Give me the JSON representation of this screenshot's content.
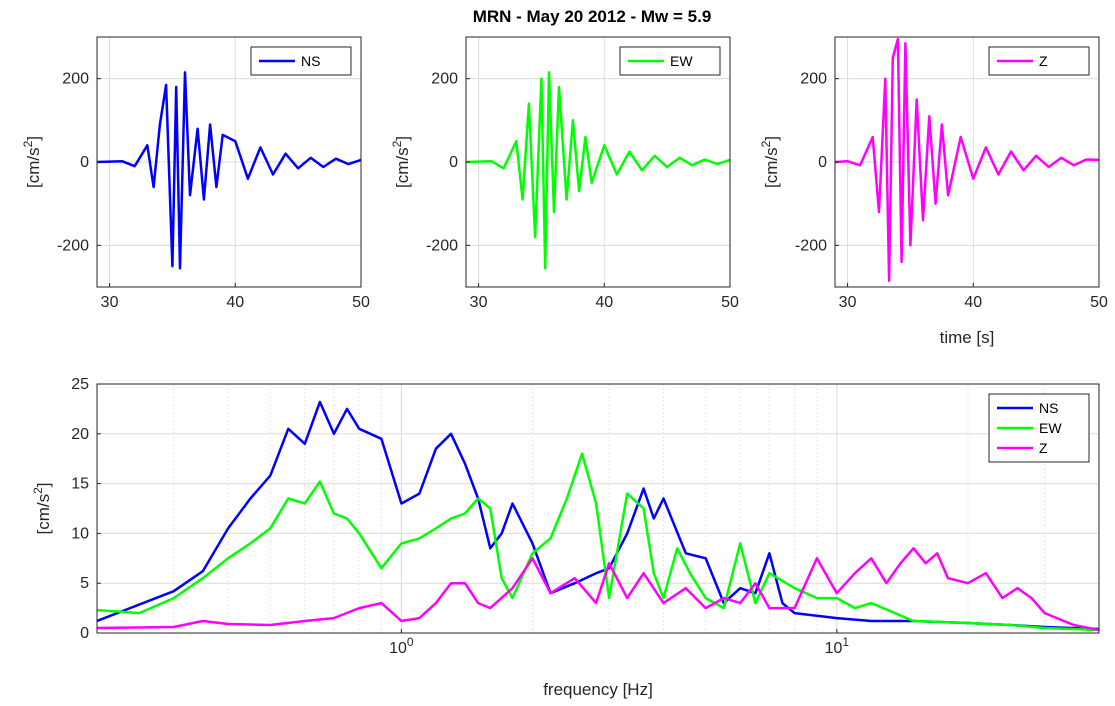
{
  "figure": {
    "title": "MRN - May 20 2012 - Mw = 5.9"
  },
  "colors": {
    "NS": "#0000ff",
    "EW": "#00ff00",
    "Z": "#ff00ff"
  },
  "chart_data": [
    {
      "type": "line",
      "title": "",
      "xlabel": "",
      "ylabel": "[cm/s2]",
      "xlim": [
        29,
        50
      ],
      "ylim": [
        -300,
        300
      ],
      "xticks": [
        30,
        40,
        50
      ],
      "yticks": [
        -200,
        0,
        200
      ],
      "grid": true,
      "legend": "top-right",
      "series": [
        {
          "name": "NS",
          "x": [
            29,
            31,
            32,
            33,
            33.5,
            34,
            34.5,
            35,
            35.3,
            35.6,
            36,
            36.4,
            37,
            37.5,
            38,
            38.5,
            39,
            40,
            41,
            42,
            43,
            44,
            45,
            46,
            47,
            48,
            49,
            50
          ],
          "y": [
            0,
            2,
            -10,
            40,
            -60,
            90,
            185,
            -250,
            180,
            -255,
            215,
            -80,
            80,
            -90,
            90,
            -60,
            65,
            50,
            -40,
            35,
            -30,
            20,
            -15,
            10,
            -12,
            8,
            -5,
            5
          ]
        }
      ]
    },
    {
      "type": "line",
      "title": "",
      "xlabel": "",
      "ylabel": "[cm/s2]",
      "xlim": [
        29,
        50
      ],
      "ylim": [
        -300,
        300
      ],
      "xticks": [
        30,
        40,
        50
      ],
      "yticks": [
        -200,
        0,
        200
      ],
      "grid": true,
      "legend": "top-right",
      "series": [
        {
          "name": "EW",
          "x": [
            29,
            31,
            32,
            33,
            33.5,
            34,
            34.5,
            35,
            35.3,
            35.6,
            36,
            36.4,
            37,
            37.5,
            38,
            38.5,
            39,
            40,
            41,
            42,
            43,
            44,
            45,
            46,
            47,
            48,
            49,
            50
          ],
          "y": [
            0,
            2,
            -15,
            50,
            -90,
            140,
            -180,
            200,
            -255,
            215,
            -120,
            180,
            -90,
            100,
            -70,
            60,
            -50,
            40,
            -30,
            25,
            -20,
            15,
            -12,
            10,
            -8,
            6,
            -5,
            5
          ]
        }
      ]
    },
    {
      "type": "line",
      "title": "",
      "xlabel": "time [s]",
      "ylabel": "[cm/s2]",
      "xlim": [
        29,
        50
      ],
      "ylim": [
        -300,
        300
      ],
      "xticks": [
        30,
        40,
        50
      ],
      "yticks": [
        -200,
        0,
        200
      ],
      "grid": true,
      "legend": "top-right",
      "series": [
        {
          "name": "Z",
          "x": [
            29,
            30,
            31,
            32,
            32.5,
            33,
            33.3,
            33.6,
            34,
            34.3,
            34.6,
            35,
            35.5,
            36,
            36.5,
            37,
            37.5,
            38,
            39,
            40,
            41,
            42,
            43,
            44,
            45,
            46,
            47,
            48,
            49,
            50
          ],
          "y": [
            0,
            2,
            -8,
            60,
            -120,
            200,
            -285,
            250,
            295,
            -240,
            285,
            -200,
            150,
            -140,
            110,
            -100,
            90,
            -80,
            60,
            -40,
            35,
            -30,
            25,
            -20,
            15,
            -12,
            10,
            -8,
            6,
            5
          ]
        }
      ]
    },
    {
      "type": "line",
      "title": "",
      "xlabel": "frequency [Hz]",
      "ylabel": "[cm/s2]",
      "xscale": "log",
      "xlim": [
        0.2,
        40
      ],
      "ylim": [
        0,
        25
      ],
      "xtick_labels": [
        "10^0",
        "10^1"
      ],
      "xticks": [
        1,
        10
      ],
      "yticks": [
        0,
        5,
        10,
        15,
        20,
        25
      ],
      "grid": true,
      "legend": "top-right",
      "series": [
        {
          "name": "NS",
          "x": [
            0.2,
            0.3,
            0.35,
            0.4,
            0.45,
            0.5,
            0.55,
            0.6,
            0.65,
            0.7,
            0.75,
            0.8,
            0.9,
            1.0,
            1.1,
            1.2,
            1.3,
            1.4,
            1.5,
            1.6,
            1.7,
            1.8,
            2.0,
            2.2,
            2.5,
            2.8,
            3.0,
            3.3,
            3.6,
            3.8,
            4.0,
            4.5,
            5.0,
            5.5,
            6.0,
            6.5,
            7.0,
            7.5,
            8.0,
            10,
            12,
            15,
            20,
            25,
            30,
            40
          ],
          "y": [
            1.2,
            4.2,
            6.2,
            10.5,
            13.5,
            15.8,
            20.5,
            19.0,
            23.2,
            20.0,
            22.5,
            20.5,
            19.5,
            13.0,
            14.0,
            18.5,
            20.0,
            17.0,
            13.5,
            8.5,
            10.0,
            13.0,
            9.0,
            4.0,
            5.0,
            6.0,
            6.5,
            10.0,
            14.5,
            11.5,
            13.5,
            8.0,
            7.5,
            3.0,
            4.5,
            4.0,
            8.0,
            3.0,
            2.0,
            1.5,
            1.2,
            1.2,
            1.0,
            0.8,
            0.6,
            0.4
          ]
        },
        {
          "name": "EW",
          "x": [
            0.2,
            0.25,
            0.3,
            0.35,
            0.4,
            0.45,
            0.5,
            0.55,
            0.6,
            0.65,
            0.7,
            0.75,
            0.8,
            0.9,
            1.0,
            1.1,
            1.2,
            1.3,
            1.4,
            1.5,
            1.6,
            1.7,
            1.8,
            2.0,
            2.2,
            2.4,
            2.6,
            2.8,
            3.0,
            3.3,
            3.6,
            3.8,
            4.0,
            4.3,
            4.6,
            5.0,
            5.5,
            6.0,
            6.5,
            7.0,
            8.0,
            9.0,
            10,
            11,
            12,
            15,
            20,
            25,
            30,
            40
          ],
          "y": [
            2.3,
            2.0,
            3.5,
            5.5,
            7.5,
            9.0,
            10.5,
            13.5,
            13.0,
            15.2,
            12.0,
            11.5,
            10.0,
            6.5,
            9.0,
            9.5,
            10.5,
            11.5,
            12.0,
            13.5,
            12.5,
            5.5,
            3.5,
            8.0,
            9.5,
            13.5,
            18.0,
            13.0,
            3.5,
            14.0,
            12.5,
            6.0,
            3.5,
            8.5,
            6.0,
            3.5,
            2.5,
            9.0,
            3.0,
            6.0,
            4.5,
            3.5,
            3.5,
            2.5,
            3.0,
            1.2,
            1.0,
            0.8,
            0.5,
            0.3
          ]
        },
        {
          "name": "Z",
          "x": [
            0.2,
            0.3,
            0.35,
            0.4,
            0.5,
            0.6,
            0.7,
            0.8,
            0.9,
            1.0,
            1.1,
            1.2,
            1.3,
            1.4,
            1.5,
            1.6,
            1.8,
            2.0,
            2.2,
            2.5,
            2.8,
            3.0,
            3.3,
            3.6,
            4.0,
            4.5,
            5.0,
            5.5,
            6.0,
            6.5,
            7.0,
            8.0,
            9.0,
            10,
            11,
            12,
            13,
            14,
            15,
            16,
            17,
            18,
            20,
            22,
            24,
            26,
            28,
            30,
            35,
            40
          ],
          "y": [
            0.5,
            0.6,
            1.2,
            0.9,
            0.8,
            1.2,
            1.5,
            2.5,
            3.0,
            1.2,
            1.5,
            3.0,
            5.0,
            5.0,
            3.0,
            2.5,
            4.5,
            7.5,
            4.0,
            5.5,
            3.0,
            7.0,
            3.5,
            6.0,
            3.0,
            4.5,
            2.5,
            3.5,
            3.0,
            5.0,
            2.5,
            2.5,
            7.5,
            4.0,
            6.0,
            7.5,
            5.0,
            7.0,
            8.5,
            7.0,
            8.0,
            5.5,
            5.0,
            6.0,
            3.5,
            4.5,
            3.5,
            2.0,
            0.8,
            0.3
          ]
        }
      ]
    }
  ]
}
